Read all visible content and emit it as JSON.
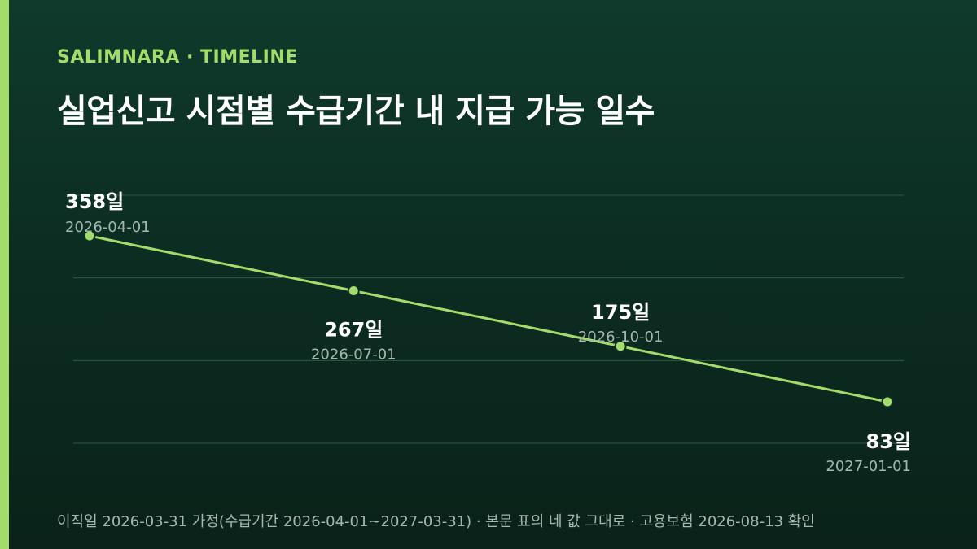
{
  "header": {
    "eyebrow": "SALIMNARA · TIMELINE",
    "title": "실업신고 시점별 수급기간 내 지급 가능 일수"
  },
  "footnote": "이직일 2026-03-31 가정(수급기간 2026-04-01~2027-03-31) · 본문 표의 네 값 그대로 · 고용보험 2026-08-13 확인",
  "colors": {
    "accent": "#a4dc6c",
    "background": "#0f3a2c",
    "grid": "#2c5a47",
    "label": "#ffffff",
    "sublabel": "#a6b8ae"
  },
  "chart_data": {
    "type": "line",
    "x": [
      "2026-04-01",
      "2026-07-01",
      "2026-10-01",
      "2027-01-01"
    ],
    "series": [
      {
        "values": [
          358,
          267,
          175,
          83
        ],
        "labels": [
          "358일",
          "267일",
          "175일",
          "83일"
        ]
      }
    ],
    "title": "실업신고 시점별 수급기간 내 지급 가능 일수",
    "xlabel": "",
    "ylabel": "",
    "ylim": [
      0,
      400
    ],
    "grid": true,
    "legend": "none"
  }
}
